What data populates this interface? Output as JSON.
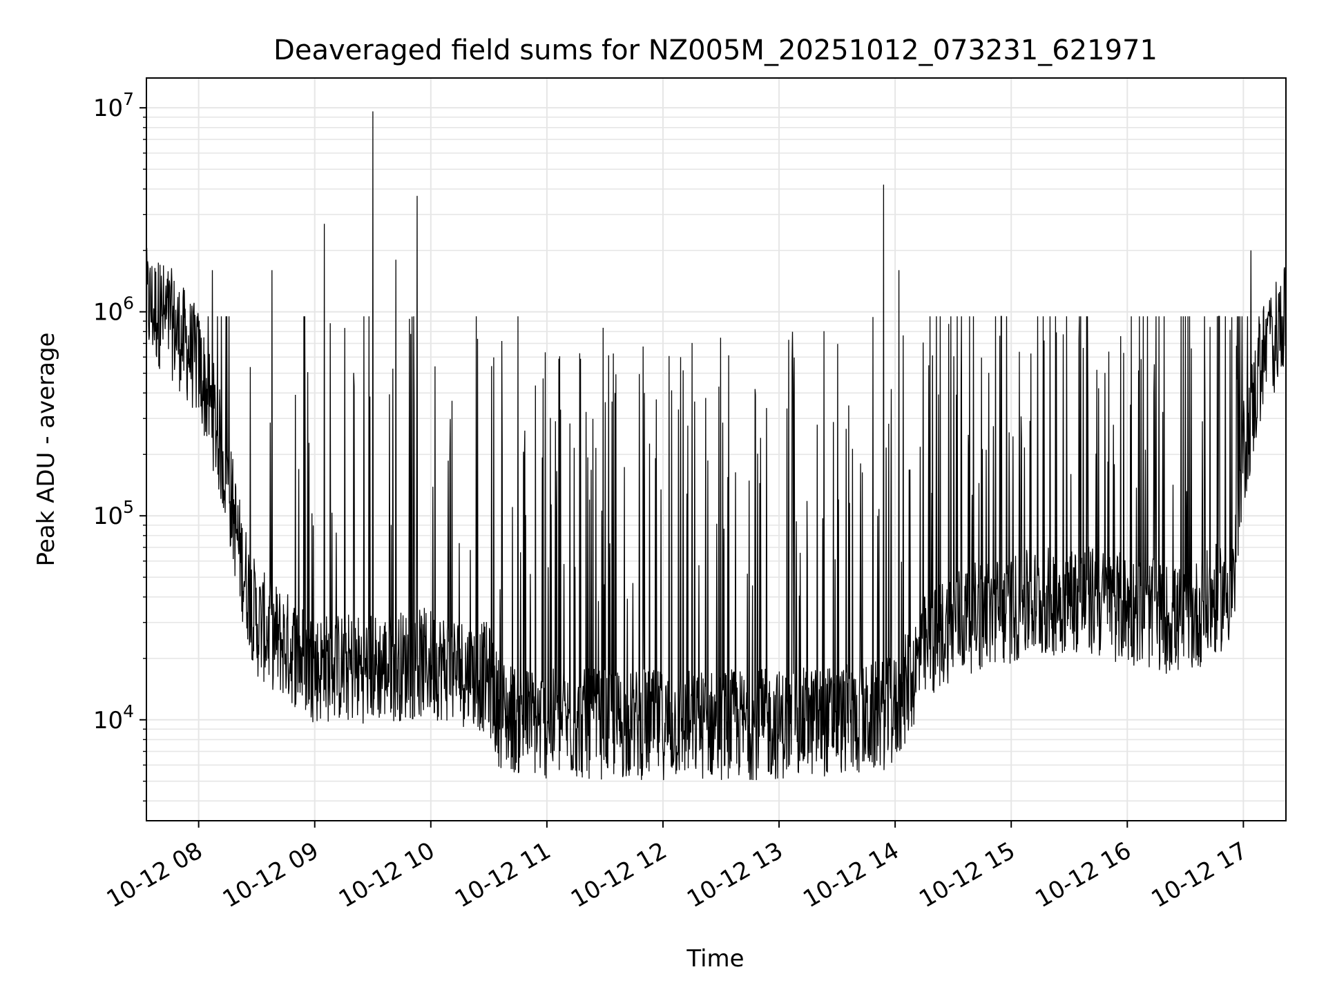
{
  "chart_data": {
    "type": "line",
    "title": "Deaveraged field sums for NZ005M_20251012_073231_621971",
    "xlabel": "Time",
    "ylabel": "Peak ADU - average",
    "x_range": [
      "2025-10-12 07:33",
      "2025-10-12 17:22"
    ],
    "x_ticks": [
      "10-12 08",
      "10-12 09",
      "10-12 10",
      "10-12 11",
      "10-12 12",
      "10-12 13",
      "10-12 14",
      "10-12 15",
      "10-12 16",
      "10-12 17"
    ],
    "y_scale": "log",
    "ylim": [
      3200,
      14000000
    ],
    "y_ticks": [
      {
        "base": "10",
        "exp": "4",
        "value": 10000
      },
      {
        "base": "10",
        "exp": "5",
        "value": 100000
      },
      {
        "base": "10",
        "exp": "6",
        "value": 1000000
      },
      {
        "base": "10",
        "exp": "7",
        "value": 10000000
      }
    ],
    "grid": true,
    "line_color": "#000000",
    "grid_color": "#e6e6e6",
    "series": [
      {
        "x": [
          "2025-10-12 07:33",
          "2025-10-12 07:45",
          "2025-10-12 08:00",
          "2025-10-12 08:08",
          "2025-10-12 08:15",
          "2025-10-12 08:22",
          "2025-10-12 08:30",
          "2025-10-12 09:00",
          "2025-10-12 09:30",
          "2025-10-12 10:00",
          "2025-10-12 10:30",
          "2025-10-12 10:35",
          "2025-10-12 10:45",
          "2025-10-12 11:00",
          "2025-10-12 11:30",
          "2025-10-12 12:00",
          "2025-10-12 12:30",
          "2025-10-12 13:00",
          "2025-10-12 13:30",
          "2025-10-12 13:45",
          "2025-10-12 14:00",
          "2025-10-12 14:15",
          "2025-10-12 14:30",
          "2025-10-12 15:00",
          "2025-10-12 15:30",
          "2025-10-12 16:00",
          "2025-10-12 16:30",
          "2025-10-12 16:55",
          "2025-10-12 17:00",
          "2025-10-12 17:10",
          "2025-10-12 17:22"
        ],
        "baseline": [
          1100000,
          900000,
          550000,
          300000,
          150000,
          60000,
          30000,
          18000,
          18000,
          19000,
          16000,
          11000,
          10000,
          9500,
          9500,
          9500,
          9500,
          9500,
          10000,
          10000,
          11000,
          22000,
          30000,
          35000,
          40000,
          35000,
          30000,
          45000,
          200000,
          600000,
          900000
        ],
        "spikes": [
          {
            "x": "2025-10-12 09:30",
            "y": 9600000
          },
          {
            "x": "2025-10-12 09:53",
            "y": 3700000
          },
          {
            "x": "2025-10-12 09:05",
            "y": 2700000
          },
          {
            "x": "2025-10-12 13:54",
            "y": 4200000
          },
          {
            "x": "2025-10-12 14:02",
            "y": 1600000
          },
          {
            "x": "2025-10-12 08:38",
            "y": 1600000
          },
          {
            "x": "2025-10-12 08:07",
            "y": 1600000
          },
          {
            "x": "2025-10-12 09:42",
            "y": 1800000
          },
          {
            "x": "2025-10-12 17:04",
            "y": 2000000
          },
          {
            "x": "2025-10-12 07:40",
            "y": 1700000
          }
        ]
      }
    ]
  }
}
